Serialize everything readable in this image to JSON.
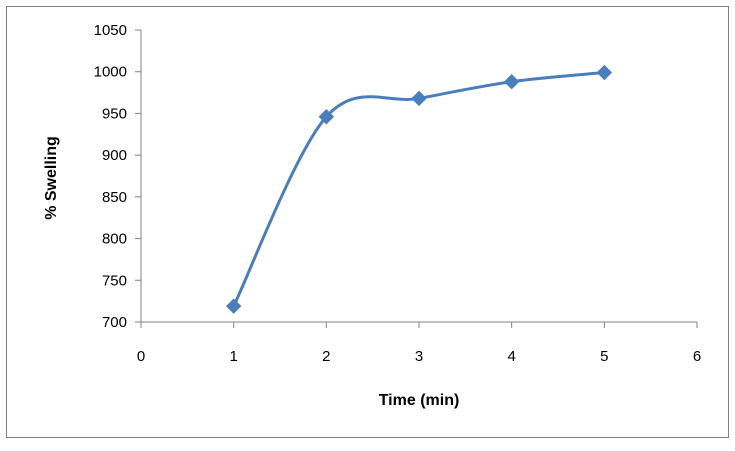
{
  "chart_data": {
    "type": "scatter",
    "title": "",
    "xlabel": "Time (min)",
    "ylabel": "% Swelling",
    "xlim": [
      0,
      6
    ],
    "ylim": [
      700,
      1050
    ],
    "xticks": [
      "0",
      "1",
      "2",
      "3",
      "4",
      "5",
      "6"
    ],
    "yticks": [
      "700",
      "750",
      "800",
      "850",
      "900",
      "950",
      "1000",
      "1050"
    ],
    "grid": false,
    "legend": "none",
    "line_style": "smoothed",
    "marker": "diamond",
    "series": [
      {
        "x": [
          1,
          2,
          3,
          4,
          5
        ],
        "y": [
          719,
          946,
          968,
          988,
          999
        ]
      }
    ],
    "colors": {
      "series": "#4A7EBB",
      "axis": "#808080",
      "frame": "#7F7F7F"
    }
  }
}
